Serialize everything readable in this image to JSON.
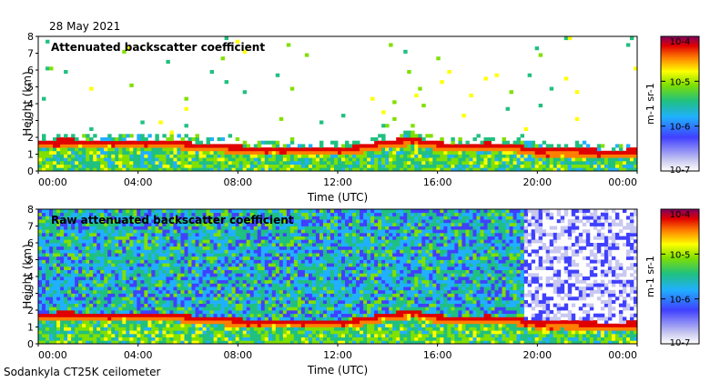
{
  "date": "28 May 2021",
  "footer": "Sodankyla CT25K ceilometer",
  "colors": {
    "background": "#ffffff",
    "frame": "#000000",
    "scale": [
      "#ffffff",
      "#c8c8f0",
      "#4040ff",
      "#20b0ff",
      "#20c080",
      "#80e000",
      "#ffff00",
      "#ff8000",
      "#e00000",
      "#800060"
    ]
  },
  "chart_data": [
    {
      "type": "heatmap",
      "title": "Attenuated backscatter coefficient",
      "xlabel": "Time (UTC)",
      "ylabel": "Height (km)",
      "xticks": [
        "00:00",
        "04:00",
        "08:00",
        "12:00",
        "16:00",
        "20:00",
        "00:00"
      ],
      "xlim_hours": [
        0,
        24
      ],
      "ylim": [
        0,
        8
      ],
      "yticks": [
        0,
        1,
        2,
        3,
        4,
        5,
        6,
        7,
        8
      ],
      "colorbar": {
        "label": "m-1 sr-1",
        "tick_labels": [
          "10-4",
          "10-5",
          "10-6",
          "10-7"
        ],
        "exponents": [
          -4,
          -5,
          -6,
          -7
        ],
        "range": [
          -7,
          -4
        ]
      },
      "boundary_layer_top_km": [
        [
          0,
          1.7
        ],
        [
          1,
          1.8
        ],
        [
          2,
          1.75
        ],
        [
          3,
          1.75
        ],
        [
          4,
          1.65
        ],
        [
          5,
          1.75
        ],
        [
          6,
          1.6
        ],
        [
          7,
          1.5
        ],
        [
          8,
          1.4
        ],
        [
          9,
          1.3
        ],
        [
          10,
          1.3
        ],
        [
          11,
          1.35
        ],
        [
          12,
          1.25
        ],
        [
          13,
          1.45
        ],
        [
          14,
          1.7
        ],
        [
          15,
          1.9
        ],
        [
          16,
          1.6
        ],
        [
          17,
          1.5
        ],
        [
          18,
          1.6
        ],
        [
          19,
          1.5
        ],
        [
          20,
          1.2
        ],
        [
          21,
          1.25
        ],
        [
          22,
          1.2
        ],
        [
          23,
          1.15
        ],
        [
          24,
          1.2
        ]
      ]
    },
    {
      "type": "heatmap",
      "title": "Raw attenuated backscatter coefficient",
      "xlabel": "Time (UTC)",
      "ylabel": "Height (km)",
      "xticks": [
        "00:00",
        "04:00",
        "08:00",
        "12:00",
        "16:00",
        "20:00",
        "00:00"
      ],
      "xlim_hours": [
        0,
        24
      ],
      "ylim": [
        0,
        8
      ],
      "yticks": [
        0,
        1,
        2,
        3,
        4,
        5,
        6,
        7,
        8
      ],
      "colorbar": {
        "label": "m-1 sr-1",
        "tick_labels": [
          "10-4",
          "10-5",
          "10-6",
          "10-7"
        ],
        "exponents": [
          -4,
          -5,
          -6,
          -7
        ],
        "range": [
          -7,
          -4
        ]
      },
      "noise_reduced_after_hours": 19.5,
      "boundary_layer_top_km": [
        [
          0,
          1.7
        ],
        [
          1,
          1.8
        ],
        [
          2,
          1.75
        ],
        [
          3,
          1.75
        ],
        [
          4,
          1.65
        ],
        [
          5,
          1.75
        ],
        [
          6,
          1.6
        ],
        [
          7,
          1.5
        ],
        [
          8,
          1.4
        ],
        [
          9,
          1.3
        ],
        [
          10,
          1.3
        ],
        [
          11,
          1.35
        ],
        [
          12,
          1.25
        ],
        [
          13,
          1.45
        ],
        [
          14,
          1.7
        ],
        [
          15,
          1.9
        ],
        [
          16,
          1.6
        ],
        [
          17,
          1.5
        ],
        [
          18,
          1.6
        ],
        [
          19,
          1.5
        ],
        [
          20,
          1.2
        ],
        [
          21,
          1.25
        ],
        [
          22,
          1.2
        ],
        [
          23,
          1.15
        ],
        [
          24,
          1.2
        ]
      ]
    }
  ]
}
